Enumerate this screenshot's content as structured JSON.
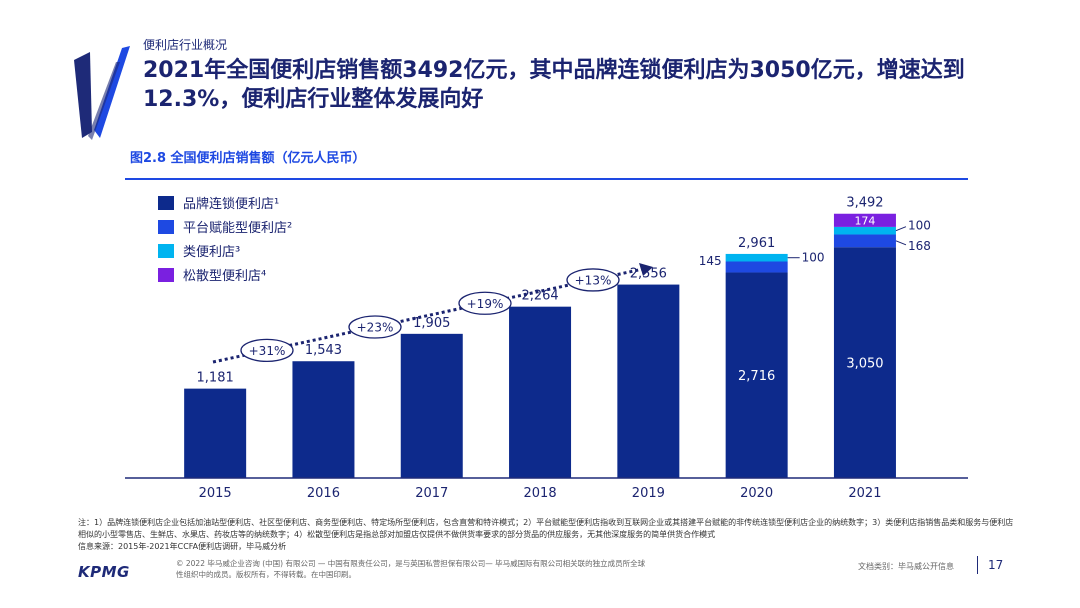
{
  "section_label": "便利店行业概况",
  "headline": "2021年全国便利店销售额3492亿元，其中品牌连锁便利店为3050亿元，增速达到12.3%，便利店行业整体发展向好",
  "figure_title": "图2.8 全国便利店销售额（亿元人民币）",
  "colors": {
    "brand": "#1e2a78",
    "accent": "#1e49e2",
    "platform": "#1e49e2",
    "similar": "#00b4f0",
    "loose": "#7a20e0",
    "chain": "#0d2a8c"
  },
  "chart_data": {
    "type": "bar",
    "stacked": true,
    "categories": [
      "2015",
      "2016",
      "2017",
      "2018",
      "2019",
      "2020",
      "2021"
    ],
    "series": [
      {
        "name": "品牌连锁便利店¹",
        "color": "#0d2a8c",
        "values": [
          1181,
          1543,
          1905,
          2264,
          2556,
          2716,
          3050
        ]
      },
      {
        "name": "平台赋能型便利店²",
        "color": "#1e49e2",
        "values": [
          0,
          0,
          0,
          0,
          0,
          145,
          168
        ]
      },
      {
        "name": "类便利店³",
        "color": "#00b4f0",
        "values": [
          0,
          0,
          0,
          0,
          0,
          100,
          100
        ]
      },
      {
        "name": "松散型便利店⁴",
        "color": "#7a20e0",
        "values": [
          0,
          0,
          0,
          0,
          0,
          0,
          174
        ]
      }
    ],
    "totals": [
      1181,
      1543,
      1905,
      2264,
      2556,
      2961,
      3492
    ],
    "total_labels": [
      "1,181",
      "1,543",
      "1,905",
      "2,264",
      "2,556",
      "2,961",
      "3,492"
    ],
    "inner_labels": {
      "2020": "2,716",
      "2021": "3,050"
    },
    "segment_labels": {
      "2020": {
        "platform": "145",
        "similar": "100"
      },
      "2021": {
        "platform": "168",
        "similar": "100",
        "loose": "174"
      }
    },
    "growth_labels": [
      "+31%",
      "+23%",
      "+19%",
      "+13%"
    ],
    "ylim": [
      0,
      3700
    ],
    "legend_position": "top-left",
    "xlabel": "",
    "ylabel": ""
  },
  "notes": {
    "line1": "注：1）品牌连锁便利店企业包括加油站型便利店、社区型便利店、商务型便利店、特定场所型便利店，包含直营和特许模式；2）平台赋能型便利店指收到互联网企业或其搭建平台赋能的非传统连锁型便利店企业的纳统数字；3）类便利店指销售品类和服务与便利店相似的小型零售店、生鲜店、水果店、药妆店等的纳统数字；4）松散型便利店是指总部对加盟店仅提供不做供货率要求的部分货品的供应服务，无其他深度服务的简单供货合作模式",
    "source": "信息来源：2015年-2021年CCFA便利店调研，毕马威分析"
  },
  "footer": {
    "copyright": "© 2022 毕马威企业咨询 (中国) 有限公司 — 中国有限责任公司，是与英国私营担保有限公司— 毕马威国际有限公司相关联的独立成员所全球性组织中的成员。版权所有，不得转载。在中国印刷。",
    "doc_class": "文档类别：毕马威公开信息",
    "page": "17",
    "logo_text": "KPMG"
  }
}
